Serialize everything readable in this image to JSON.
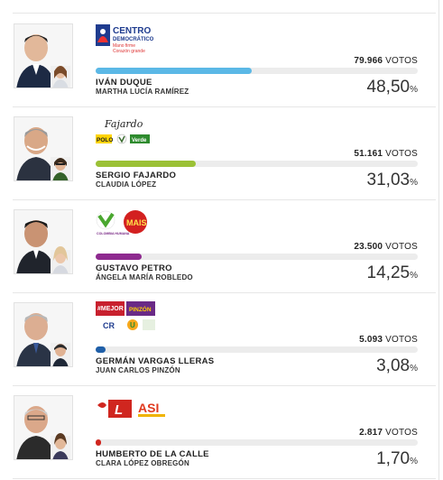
{
  "candidates": [
    {
      "name": "IVÁN DUQUE",
      "vice": "MARTHA LUCÍA RAMÍREZ",
      "votes": "79.966",
      "votes_label": "VOTOS",
      "percent": "48,50",
      "percent_sign": "%",
      "share": 48.5,
      "bar_color": "#5bb8e6",
      "party_logo": {
        "line1": "CENTRO",
        "line2": "DEMOCRÁTICO",
        "line3": "Mano firme",
        "line4": "Corazón grande"
      }
    },
    {
      "name": "SERGIO FAJARDO",
      "vice": "CLAUDIA LÓPEZ",
      "votes": "51.161",
      "votes_label": "VOTOS",
      "percent": "31,03",
      "percent_sign": "%",
      "share": 31.03,
      "bar_color": "#9bc136",
      "party_logo": {
        "signature": "Fajardo",
        "polo": "POLO",
        "verde": "Verde"
      }
    },
    {
      "name": "GUSTAVO PETRO",
      "vice": "ÁNGELA MARÍA ROBLEDO",
      "votes": "23.500",
      "votes_label": "VOTOS",
      "percent": "14,25",
      "percent_sign": "%",
      "share": 14.25,
      "bar_color": "#8e2a8f",
      "party_logo": {
        "left": "COLOMBIA HUMANA",
        "right": "MAIS"
      }
    },
    {
      "name": "GERMÁN VARGAS LLERAS",
      "vice": "JUAN CARLOS PINZÓN",
      "votes": "5.093",
      "votes_label": "VOTOS",
      "percent": "3,08",
      "percent_sign": "%",
      "share": 3.08,
      "bar_color": "#1f5fa8",
      "party_logo": {
        "mejor": "#MEJOR",
        "pinzon": "PINZÓN",
        "cr": "CR",
        "u": "U"
      }
    },
    {
      "name": "HUMBERTO DE LA CALLE",
      "vice": "CLARA LÓPEZ OBREGÓN",
      "votes": "2.817",
      "votes_label": "VOTOS",
      "percent": "1,70",
      "percent_sign": "%",
      "share": 1.7,
      "bar_color": "#d0261f",
      "party_logo": {
        "l": "L",
        "asi": "ASI"
      }
    }
  ],
  "colors": {
    "track": "#ececec",
    "divider": "#e6e6e6"
  }
}
